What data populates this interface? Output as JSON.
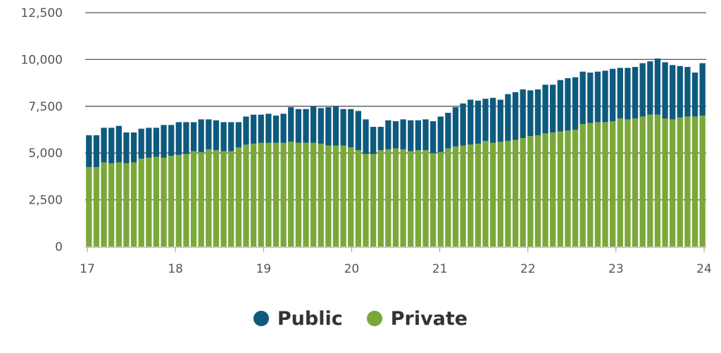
{
  "chart_data": {
    "type": "bar",
    "stacked": true,
    "title": "",
    "xlabel": "",
    "ylabel": "",
    "ylim": [
      0,
      12500
    ],
    "y_ticks": [
      0,
      2500,
      5000,
      7500,
      10000,
      12500
    ],
    "y_tick_labels": [
      "0",
      "2,500",
      "5,000",
      "7,500",
      "10,000",
      "12,500"
    ],
    "x_tick_labels": [
      "17",
      "18",
      "19",
      "20",
      "21",
      "22",
      "23",
      "24"
    ],
    "grid": "horizontal",
    "legend_position": "bottom-center",
    "series": [
      {
        "name": "Private",
        "color": "#7aa83a",
        "values": [
          4250,
          4250,
          4500,
          4450,
          4500,
          4450,
          4500,
          4700,
          4750,
          4800,
          4750,
          4850,
          4900,
          4950,
          5100,
          5050,
          5200,
          5150,
          5100,
          5100,
          5300,
          5450,
          5500,
          5550,
          5550,
          5550,
          5550,
          5600,
          5550,
          5550,
          5550,
          5500,
          5400,
          5400,
          5400,
          5300,
          5150,
          4950,
          4950,
          5150,
          5200,
          5250,
          5200,
          5100,
          5150,
          5150,
          5000,
          5050,
          5250,
          5350,
          5400,
          5450,
          5500,
          5650,
          5550,
          5600,
          5650,
          5700,
          5800,
          5900,
          5950,
          6050,
          6100,
          6150,
          6200,
          6250,
          6550,
          6600,
          6650,
          6650,
          6700,
          6850,
          6800,
          6850,
          6950,
          7050,
          7050,
          6850,
          6800,
          6900,
          6950,
          6950,
          7000
        ]
      },
      {
        "name": "Public",
        "color": "#0e5a7e",
        "values": [
          1700,
          1700,
          1850,
          1900,
          1950,
          1650,
          1600,
          1600,
          1600,
          1550,
          1750,
          1650,
          1750,
          1700,
          1550,
          1750,
          1600,
          1600,
          1550,
          1550,
          1350,
          1500,
          1550,
          1500,
          1550,
          1450,
          1550,
          1850,
          1800,
          1800,
          1950,
          1900,
          2050,
          2100,
          1950,
          2050,
          2100,
          1850,
          1450,
          1250,
          1550,
          1450,
          1600,
          1650,
          1600,
          1650,
          1700,
          1900,
          1900,
          2100,
          2250,
          2400,
          2300,
          2250,
          2400,
          2250,
          2500,
          2550,
          2600,
          2450,
          2450,
          2600,
          2550,
          2750,
          2800,
          2800,
          2800,
          2700,
          2700,
          2750,
          2800,
          2700,
          2750,
          2750,
          2850,
          2850,
          3000,
          3000,
          2900,
          2750,
          2650,
          2350,
          2800
        ]
      }
    ]
  },
  "legend": {
    "public_label": "Public",
    "private_label": "Private",
    "public_color": "#0e5a7e",
    "private_color": "#7aa83a"
  }
}
